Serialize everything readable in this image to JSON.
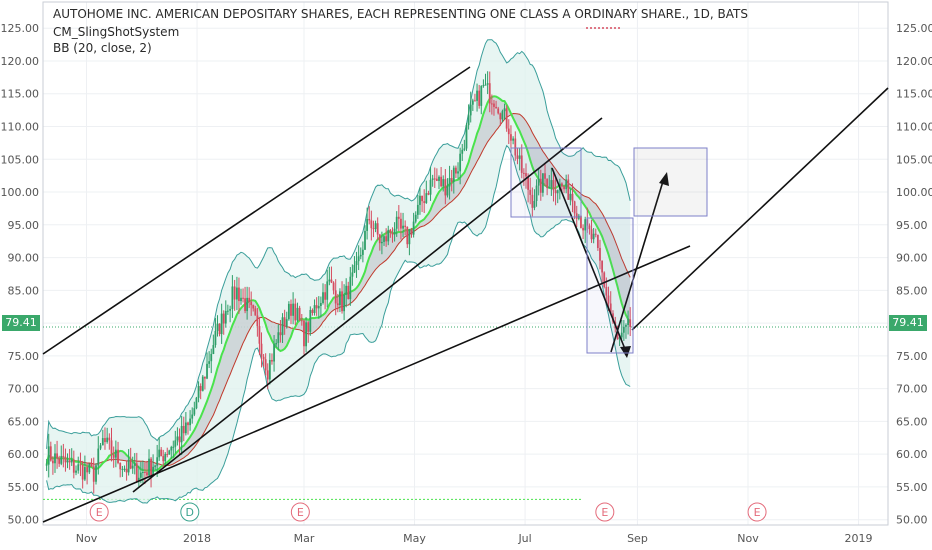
{
  "header": {
    "title": "AUTOHOME INC. AMERICAN DEPOSITARY SHARES, EACH REPRESENTING ONE CLASS A ORDINARY SHARE., 1D, BATS",
    "indicator_1": "CM_SlingShotSystem",
    "indicator_2": "BB (20, close, 2)"
  },
  "last_price_label": "79.41",
  "colors": {
    "up_candle": "#2e9e68",
    "down_candle": "#d64b5f",
    "bb_band": "#3a9e9a",
    "bb_fill": "#dff2ee",
    "ema_fast": "#49e34c",
    "ema_slow": "#c0392b",
    "price_tag": "#3aa86b",
    "box": "#7d7fc8",
    "earnings": "#e46b7b",
    "dividend": "#3aa38f"
  },
  "chart_data": {
    "type": "candlestick",
    "title": "AUTOHOME INC. AMERICAN DEPOSITARY SHARES, EACH REPRESENTING ONE CLASS A ORDINARY SHARE., 1D, BATS",
    "ylim": [
      49,
      126
    ],
    "y_ticks": [
      50.0,
      55.0,
      60.0,
      65.0,
      70.0,
      75.0,
      80.0,
      85.0,
      90.0,
      95.0,
      100.0,
      105.0,
      110.0,
      115.0,
      120.0,
      125.0
    ],
    "x_ticks": [
      {
        "label": "Nov",
        "date": "2017-11-01"
      },
      {
        "label": "2018",
        "date": "2018-01-01"
      },
      {
        "label": "Mar",
        "date": "2018-03-01"
      },
      {
        "label": "May",
        "date": "2018-05-01"
      },
      {
        "label": "Jul",
        "date": "2018-07-01"
      },
      {
        "label": "Sep",
        "date": "2018-09-01"
      },
      {
        "label": "Nov",
        "date": "2018-11-01"
      },
      {
        "label": "2019",
        "date": "2019-01-01"
      }
    ],
    "last_price": 79.41,
    "price_path": [
      {
        "date": "2017-10-10",
        "close": 60
      },
      {
        "date": "2017-10-25",
        "close": 58
      },
      {
        "date": "2017-11-05",
        "close": 57
      },
      {
        "date": "2017-11-10",
        "close": 62
      },
      {
        "date": "2017-11-22",
        "close": 58
      },
      {
        "date": "2017-12-01",
        "close": 57
      },
      {
        "date": "2017-12-10",
        "close": 59
      },
      {
        "date": "2017-12-20",
        "close": 62
      },
      {
        "date": "2017-12-27",
        "close": 64
      },
      {
        "date": "2018-01-03",
        "close": 70
      },
      {
        "date": "2018-01-10",
        "close": 77
      },
      {
        "date": "2018-01-18",
        "close": 83
      },
      {
        "date": "2018-01-23",
        "close": 85
      },
      {
        "date": "2018-02-01",
        "close": 81
      },
      {
        "date": "2018-02-09",
        "close": 73
      },
      {
        "date": "2018-02-16",
        "close": 79
      },
      {
        "date": "2018-02-23",
        "close": 83
      },
      {
        "date": "2018-03-01",
        "close": 78
      },
      {
        "date": "2018-03-08",
        "close": 83
      },
      {
        "date": "2018-03-15",
        "close": 86
      },
      {
        "date": "2018-03-22",
        "close": 83
      },
      {
        "date": "2018-03-30",
        "close": 88
      },
      {
        "date": "2018-04-06",
        "close": 96
      },
      {
        "date": "2018-04-13",
        "close": 92
      },
      {
        "date": "2018-04-20",
        "close": 95
      },
      {
        "date": "2018-04-27",
        "close": 93
      },
      {
        "date": "2018-05-04",
        "close": 98
      },
      {
        "date": "2018-05-11",
        "close": 102
      },
      {
        "date": "2018-05-18",
        "close": 101
      },
      {
        "date": "2018-05-25",
        "close": 104
      },
      {
        "date": "2018-06-01",
        "close": 112
      },
      {
        "date": "2018-06-08",
        "close": 116
      },
      {
        "date": "2018-06-15",
        "close": 114
      },
      {
        "date": "2018-06-22",
        "close": 110
      },
      {
        "date": "2018-06-28",
        "close": 104
      },
      {
        "date": "2018-07-05",
        "close": 99
      },
      {
        "date": "2018-07-12",
        "close": 102
      },
      {
        "date": "2018-07-19",
        "close": 101
      },
      {
        "date": "2018-07-26",
        "close": 100
      },
      {
        "date": "2018-08-02",
        "close": 95
      },
      {
        "date": "2018-08-09",
        "close": 92
      },
      {
        "date": "2018-08-16",
        "close": 83
      },
      {
        "date": "2018-08-21",
        "close": 77
      },
      {
        "date": "2018-08-28",
        "close": 79.41
      }
    ],
    "events": [
      {
        "label": "E",
        "date": "2017-11-08",
        "kind": "earnings"
      },
      {
        "label": "D",
        "date": "2017-12-28",
        "kind": "dividend"
      },
      {
        "label": "E",
        "date": "2018-02-27",
        "kind": "earnings"
      },
      {
        "label": "E",
        "date": "2018-08-14",
        "kind": "earnings"
      },
      {
        "label": "E",
        "date": "2018-11-06",
        "kind": "earnings"
      }
    ],
    "grid": true,
    "axis_position": "both"
  }
}
